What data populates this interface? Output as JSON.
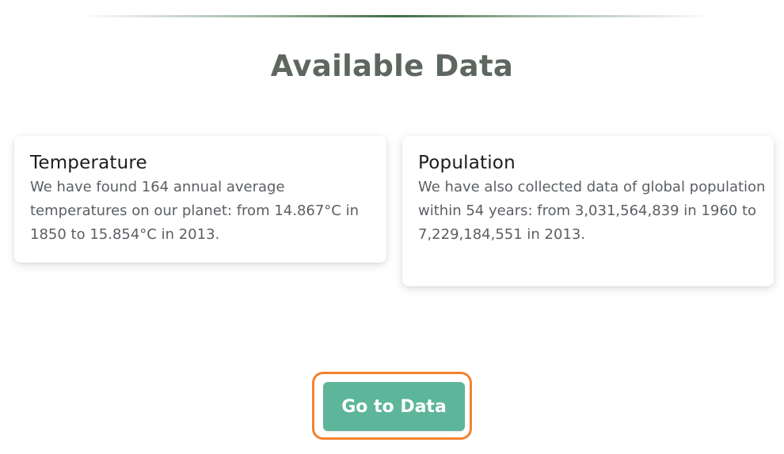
{
  "section": {
    "title": "Available Data"
  },
  "cards": [
    {
      "title": "Temperature",
      "text": "We have found 164 annual average temperatures on our planet: from 14.867°C in 1850 to 15.854°C in 2013."
    },
    {
      "title": "Population",
      "text": "We have also collected data of global population within 54 years: from 3,031,564,839 in 1960 to 7,229,184,551 in 2013."
    }
  ],
  "cta": {
    "label": "Go to Data"
  },
  "colors": {
    "accent": "#5db59a",
    "focus_ring": "#f2832f",
    "divider": "#3d6b44",
    "title": "#5e6660"
  }
}
